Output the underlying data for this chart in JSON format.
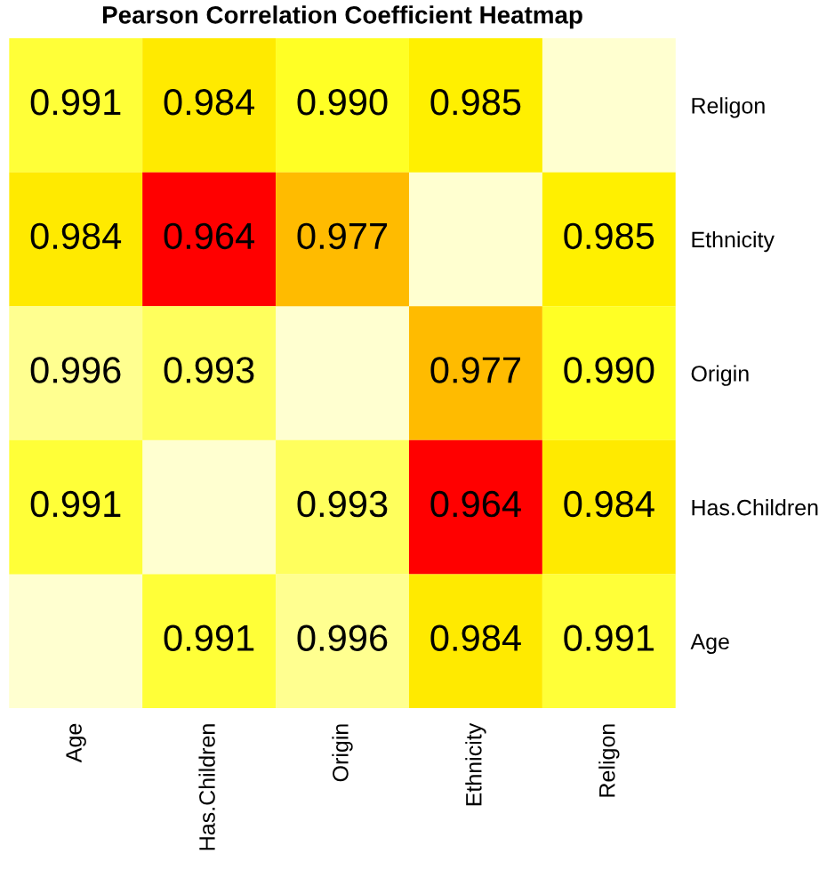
{
  "chart_data": {
    "type": "heatmap",
    "title": "Pearson Correlation Coefficient Heatmap",
    "categories": [
      "Age",
      "Has.Children",
      "Origin",
      "Ethnicity",
      "Religon"
    ],
    "y_categories": [
      "Religon",
      "Ethnicity",
      "Origin",
      "Has.Children",
      "Age"
    ],
    "cells": [
      [
        0.991,
        0.984,
        0.99,
        0.985,
        null
      ],
      [
        0.984,
        0.964,
        0.977,
        null,
        0.985
      ],
      [
        0.996,
        0.993,
        null,
        0.977,
        0.99
      ],
      [
        0.991,
        null,
        0.993,
        0.964,
        0.984
      ],
      [
        null,
        0.991,
        0.996,
        0.984,
        0.991
      ]
    ],
    "cell_labels": [
      [
        "0.991",
        "0.984",
        "0.990",
        "0.985",
        null
      ],
      [
        "0.984",
        "0.964",
        "0.977",
        null,
        "0.985"
      ],
      [
        "0.996",
        "0.993",
        null,
        "0.977",
        "0.990"
      ],
      [
        "0.991",
        null,
        "0.993",
        "0.964",
        "0.984"
      ],
      [
        null,
        "0.991",
        "0.996",
        "0.984",
        "0.991"
      ]
    ]
  }
}
